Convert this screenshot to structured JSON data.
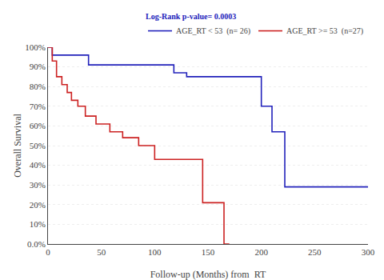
{
  "chart_data": {
    "type": "step",
    "legend_title": "Log-Rank p-value= 0.0003",
    "xlabel": "Follow-up (Months) from  RT",
    "ylabel": "Overall Survival",
    "series": [
      {
        "name": "AGE_RT < 53  (n= 26)",
        "color": "#2222BB",
        "x": [
          0,
          4,
          4,
          38,
          38,
          118,
          118,
          130,
          130,
          200,
          200,
          210,
          210,
          222,
          222,
          300
        ],
        "values": [
          1.0,
          1.0,
          0.96,
          0.96,
          0.91,
          0.91,
          0.87,
          0.87,
          0.85,
          0.85,
          0.7,
          0.7,
          0.57,
          0.57,
          0.29,
          0.29
        ]
      },
      {
        "name": "AGE_RT >= 53  (n=27)",
        "color": "#CC2222",
        "x": [
          0,
          4,
          4,
          8,
          8,
          13,
          13,
          18,
          18,
          22,
          22,
          28,
          28,
          35,
          35,
          45,
          45,
          58,
          58,
          70,
          70,
          85,
          85,
          100,
          100,
          110,
          110,
          120,
          120,
          130,
          130,
          145,
          145,
          160,
          160,
          165,
          165,
          170,
          170
        ],
        "values": [
          1.0,
          1.0,
          0.93,
          0.93,
          0.85,
          0.85,
          0.81,
          0.81,
          0.77,
          0.77,
          0.73,
          0.73,
          0.7,
          0.7,
          0.65,
          0.65,
          0.61,
          0.61,
          0.57,
          0.57,
          0.54,
          0.54,
          0.5,
          0.5,
          0.43,
          0.43,
          0.43,
          0.43,
          0.43,
          0.43,
          0.43,
          0.43,
          0.21,
          0.21,
          0.21,
          0.21,
          0.0,
          0.0,
          0.0
        ]
      }
    ],
    "xlim": [
      0,
      300
    ],
    "xticks": [
      0,
      50,
      100,
      150,
      200,
      250,
      300
    ],
    "ylim": [
      0.0,
      1.0
    ],
    "yticks": [
      {
        "value": 0.0,
        "label": "0.0%"
      },
      {
        "value": 0.1,
        "label": "10%"
      },
      {
        "value": 0.2,
        "label": "20%"
      },
      {
        "value": 0.3,
        "label": "30%"
      },
      {
        "value": 0.4,
        "label": "40%"
      },
      {
        "value": 0.5,
        "label": "50%"
      },
      {
        "value": 0.6,
        "label": "60%"
      },
      {
        "value": 0.7,
        "label": "70%"
      },
      {
        "value": 0.8,
        "label": "80%"
      },
      {
        "value": 0.9,
        "label": "90%"
      },
      {
        "value": 1.0,
        "label": "100%"
      }
    ],
    "grid": "y",
    "legend": "upper right"
  }
}
